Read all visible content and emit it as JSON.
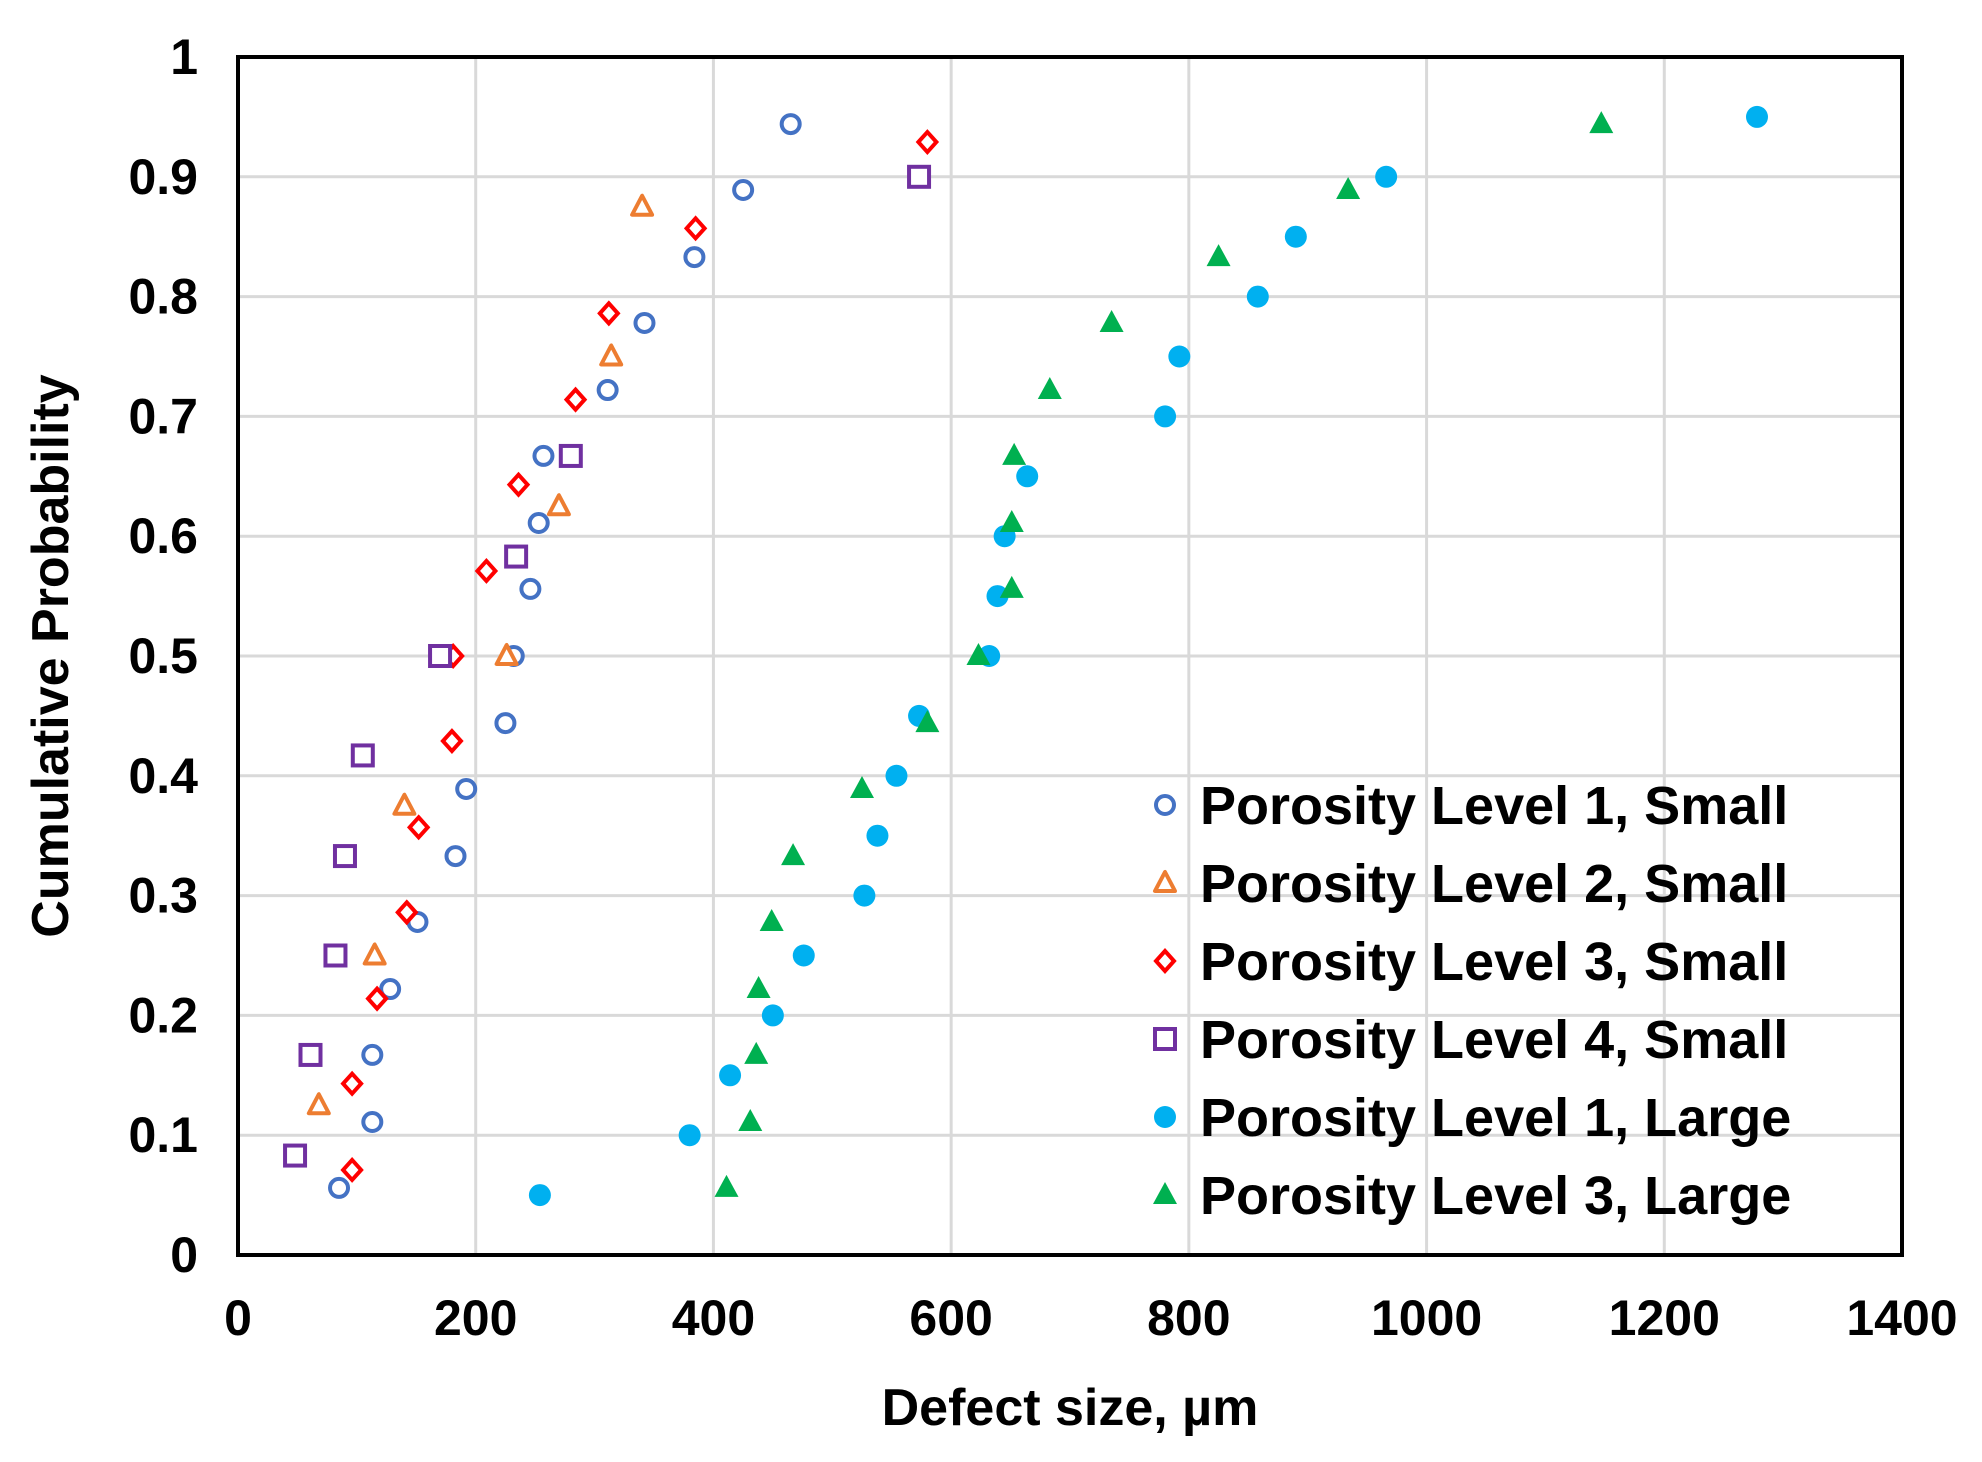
{
  "chart_data": {
    "type": "scatter",
    "title": "",
    "xlabel": "Defect size, µm",
    "ylabel": "Cumulative Probability",
    "xlim": [
      0,
      1400
    ],
    "ylim": [
      0,
      1
    ],
    "xticks": [
      0,
      200,
      400,
      600,
      800,
      1000,
      1200,
      1400
    ],
    "yticks": [
      0,
      0.1,
      0.2,
      0.3,
      0.4,
      0.5,
      0.6,
      0.7,
      0.8,
      0.9,
      1
    ],
    "ytick_labels": [
      "0",
      "0.1",
      "0.2",
      "0.3",
      "0.4",
      "0.5",
      "0.6",
      "0.7",
      "0.8",
      "0.9",
      "1"
    ],
    "grid": true,
    "legend_position": "bottom-right",
    "series": [
      {
        "name": "Porosity Level 1, Small",
        "marker": "circle-open",
        "color": "#4472C4",
        "points": [
          [
            85,
            0.056
          ],
          [
            113,
            0.111
          ],
          [
            113,
            0.167
          ],
          [
            128,
            0.222
          ],
          [
            151,
            0.278
          ],
          [
            183,
            0.333
          ],
          [
            192,
            0.389
          ],
          [
            225,
            0.444
          ],
          [
            232,
            0.5
          ],
          [
            246,
            0.556
          ],
          [
            253,
            0.611
          ],
          [
            257,
            0.667
          ],
          [
            311,
            0.722
          ],
          [
            342,
            0.778
          ],
          [
            384,
            0.833
          ],
          [
            425,
            0.889
          ],
          [
            465,
            0.944
          ]
        ]
      },
      {
        "name": "Porosity Level 2, Small",
        "marker": "triangle-open",
        "color": "#ED7D31",
        "points": [
          [
            68,
            0.125
          ],
          [
            115,
            0.25
          ],
          [
            140,
            0.375
          ],
          [
            226,
            0.5
          ],
          [
            270,
            0.625
          ],
          [
            314,
            0.75
          ],
          [
            340,
            0.875
          ]
        ]
      },
      {
        "name": "Porosity Level 3, Small",
        "marker": "diamond-open",
        "color": "#FF0000",
        "points": [
          [
            96,
            0.071
          ],
          [
            96,
            0.143
          ],
          [
            117,
            0.214
          ],
          [
            142,
            0.286
          ],
          [
            152,
            0.357
          ],
          [
            180,
            0.429
          ],
          [
            181,
            0.5
          ],
          [
            209,
            0.571
          ],
          [
            236,
            0.643
          ],
          [
            284,
            0.714
          ],
          [
            312,
            0.786
          ],
          [
            385,
            0.857
          ],
          [
            580,
            0.929
          ]
        ]
      },
      {
        "name": "Porosity Level 4, Small",
        "marker": "square-open",
        "color": "#7030A0",
        "points": [
          [
            48,
            0.083
          ],
          [
            61,
            0.167
          ],
          [
            82,
            0.25
          ],
          [
            90,
            0.333
          ],
          [
            105,
            0.417
          ],
          [
            170,
            0.5
          ],
          [
            234,
            0.583
          ],
          [
            280,
            0.667
          ],
          [
            573,
            0.9
          ]
        ]
      },
      {
        "name": "Porosity Level 1, Large",
        "marker": "circle-filled",
        "color": "#00B0F0",
        "points": [
          [
            254,
            0.05
          ],
          [
            380,
            0.1
          ],
          [
            414,
            0.15
          ],
          [
            450,
            0.2
          ],
          [
            476,
            0.25
          ],
          [
            527,
            0.3
          ],
          [
            538,
            0.35
          ],
          [
            554,
            0.4
          ],
          [
            573,
            0.45
          ],
          [
            632,
            0.5
          ],
          [
            639,
            0.55
          ],
          [
            645,
            0.6
          ],
          [
            664,
            0.65
          ],
          [
            780,
            0.7
          ],
          [
            792,
            0.75
          ],
          [
            858,
            0.8
          ],
          [
            890,
            0.85
          ],
          [
            966,
            0.9
          ],
          [
            1278,
            0.95
          ]
        ]
      },
      {
        "name": "Porosity Level 3, Large",
        "marker": "triangle-filled",
        "color": "#00B050",
        "points": [
          [
            411,
            0.056
          ],
          [
            431,
            0.111
          ],
          [
            436,
            0.167
          ],
          [
            438,
            0.222
          ],
          [
            449,
            0.278
          ],
          [
            467,
            0.333
          ],
          [
            525,
            0.389
          ],
          [
            580,
            0.444
          ],
          [
            623,
            0.5
          ],
          [
            651,
            0.556
          ],
          [
            651,
            0.611
          ],
          [
            653,
            0.667
          ],
          [
            683,
            0.722
          ],
          [
            735,
            0.778
          ],
          [
            825,
            0.833
          ],
          [
            934,
            0.889
          ],
          [
            1147,
            0.944
          ]
        ]
      }
    ]
  }
}
